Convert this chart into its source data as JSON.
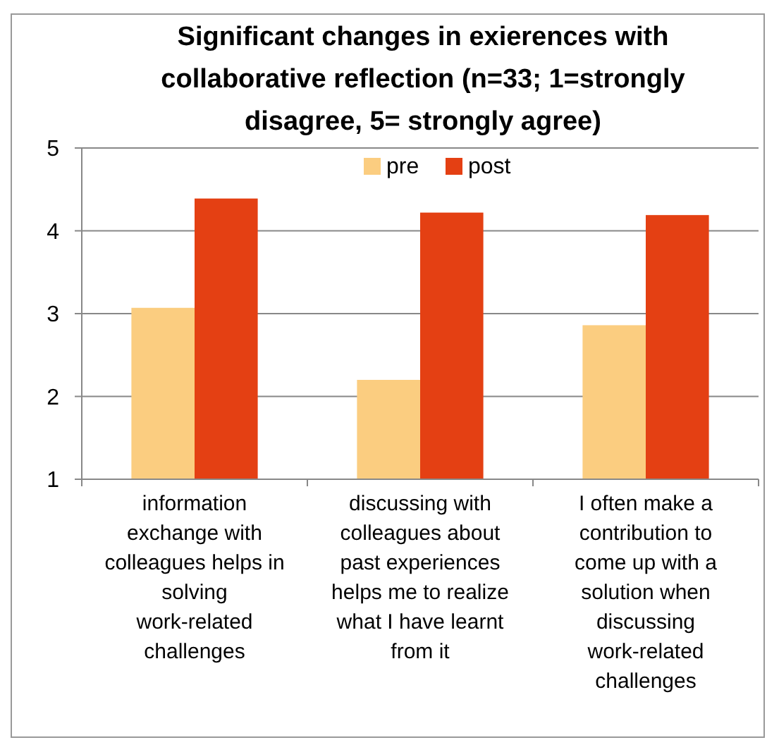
{
  "chart_data": {
    "type": "bar",
    "title": "Significant changes in exierences with collaborative reflection (n=33; 1=strongly disagree, 5= strongly agree)",
    "categories": [
      "information exchange with colleagues helps in solving work-related challenges",
      "discussing with colleagues about past experiences helps me to realize what I have learnt from it",
      "I often make a contribution to come up with a solution when discussing work-related challenges"
    ],
    "series": [
      {
        "name": "pre",
        "color": "#fbcd80",
        "values": [
          3.07,
          2.2,
          2.86
        ]
      },
      {
        "name": "post",
        "color": "#e44013",
        "values": [
          4.39,
          4.22,
          4.19
        ]
      }
    ],
    "ylim": [
      1,
      5
    ],
    "yticks": [
      1,
      2,
      3,
      4,
      5
    ],
    "grid": "y",
    "legend": "top"
  }
}
